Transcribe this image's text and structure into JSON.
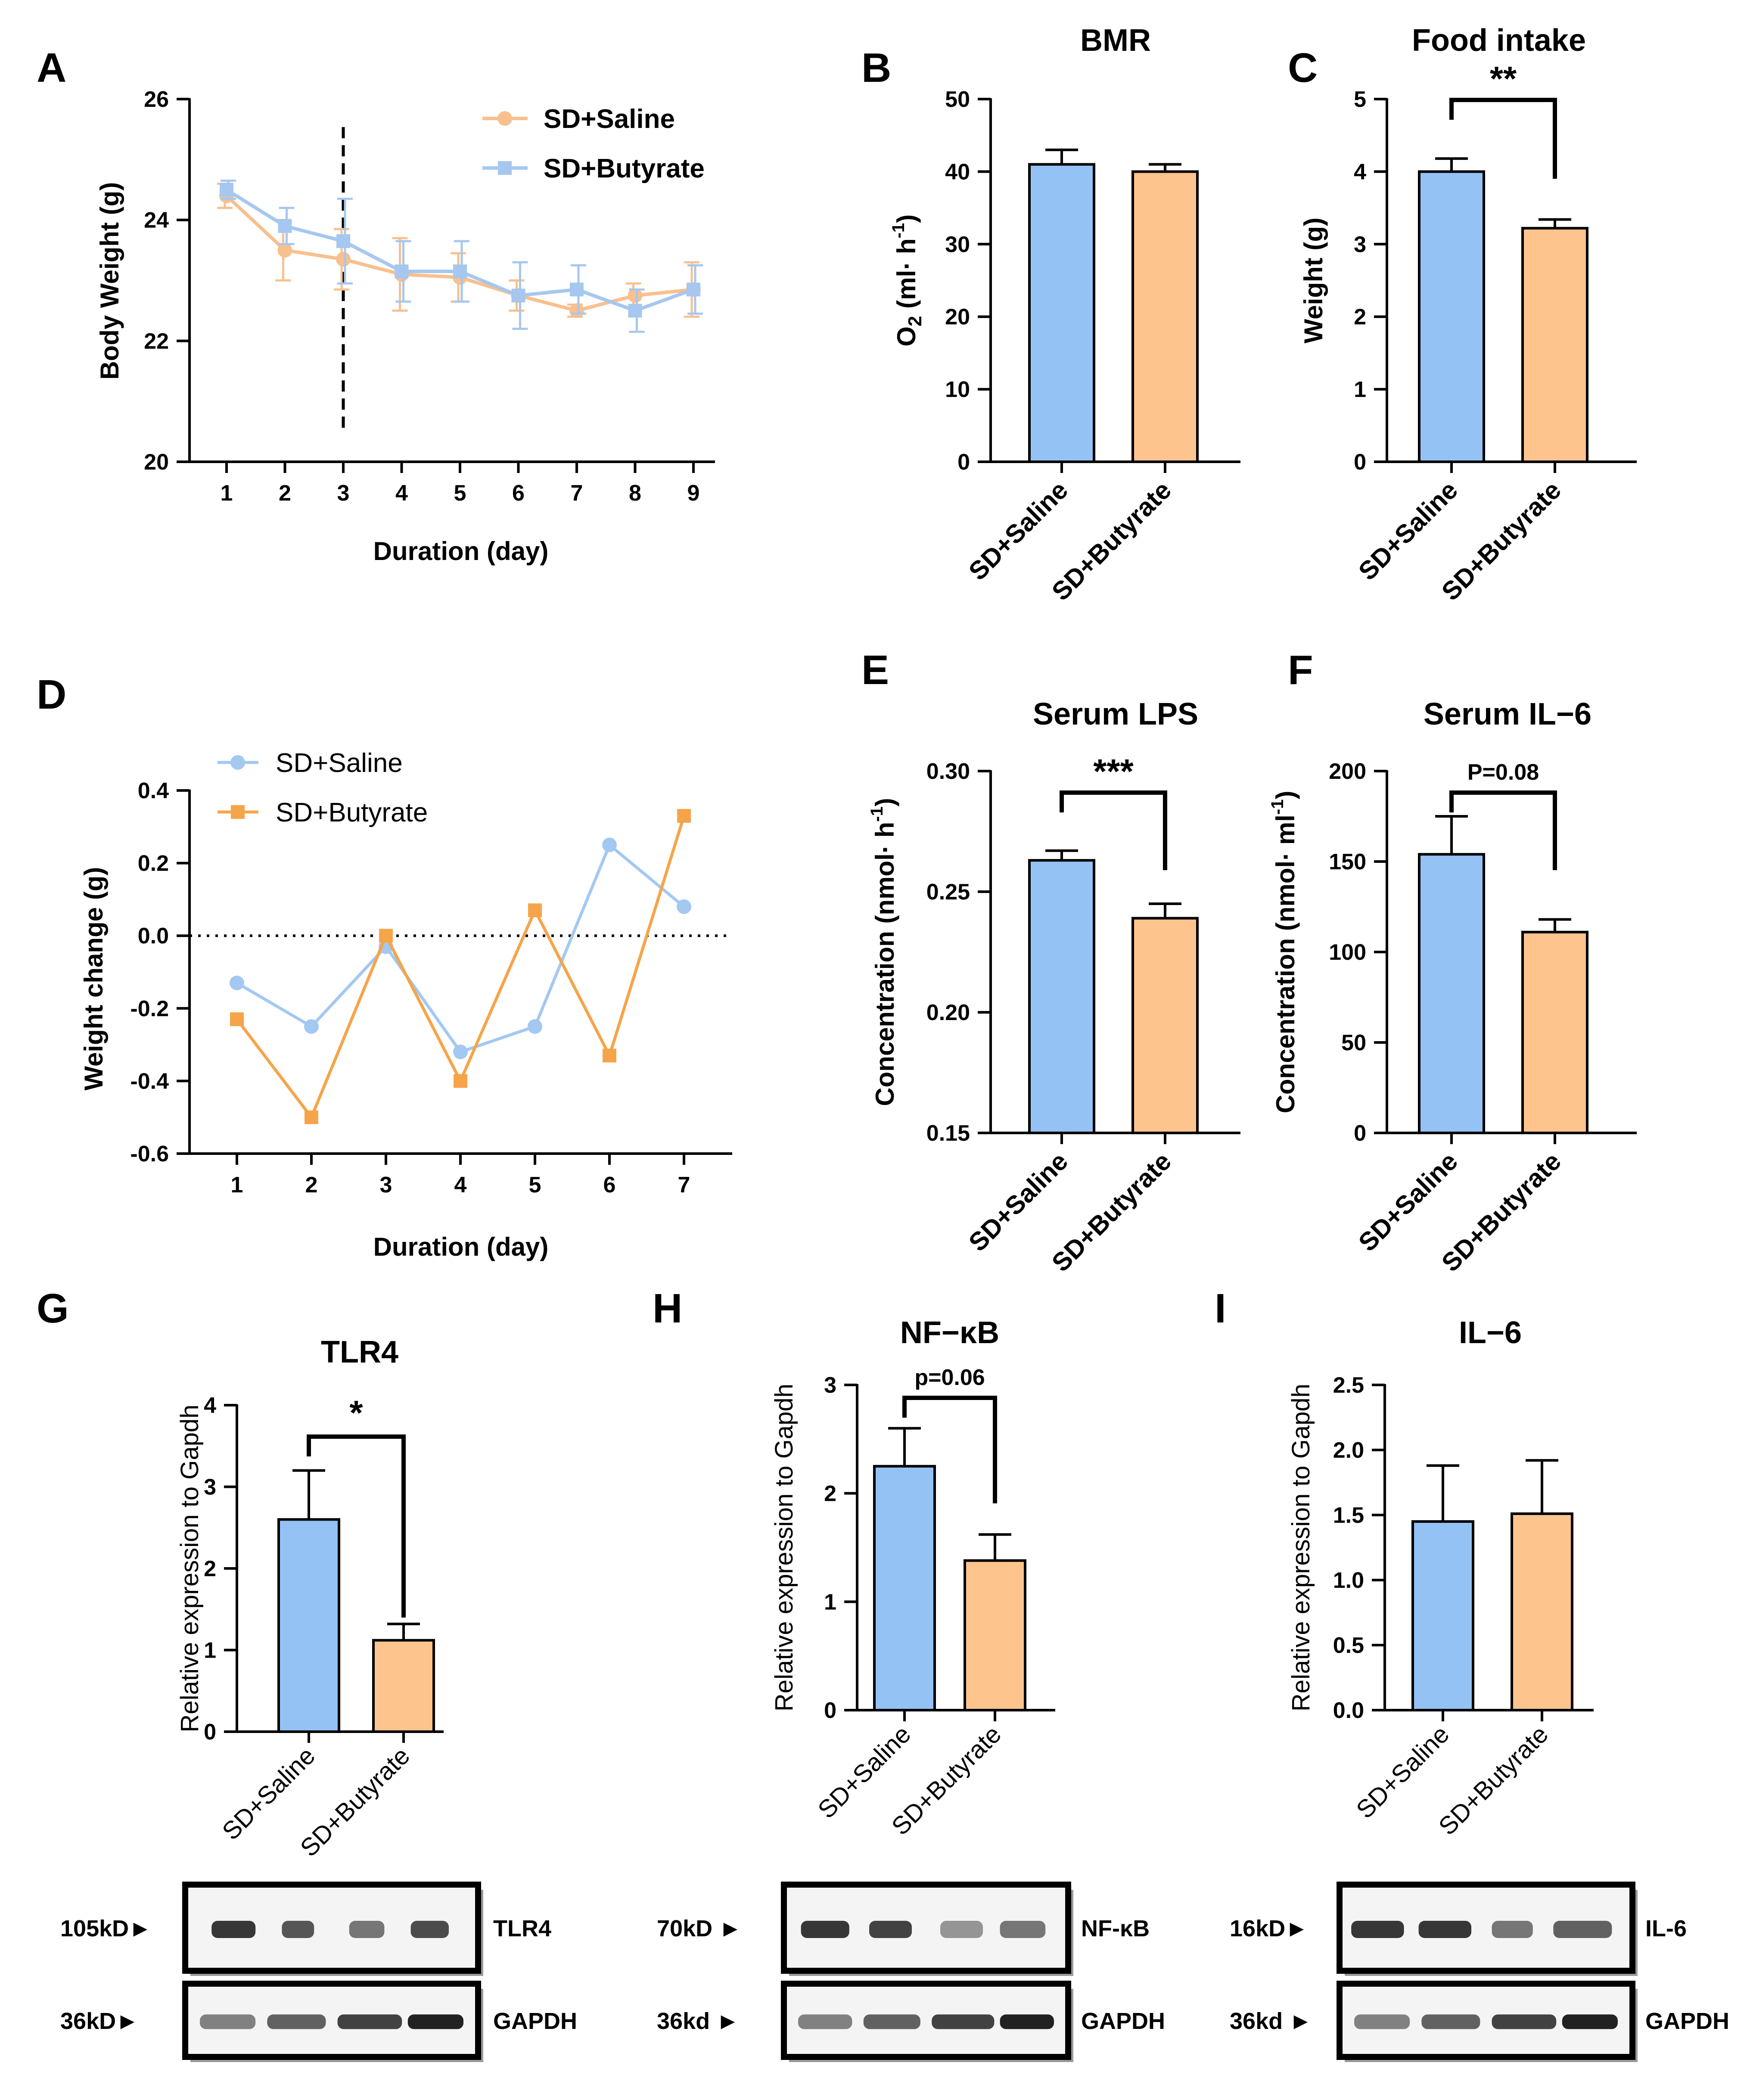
{
  "colors": {
    "saline_blue": "#94c2f5",
    "butyrate_orange": "#fdc48e",
    "lineA_saline": "#f8c08e",
    "lineA_butyrate": "#a6c7ef",
    "lineD_saline": "#a3c8f2",
    "lineD_butyrate": "#f6a449"
  },
  "chart_data": [
    {
      "id": "A",
      "type": "line",
      "panel_label": "A",
      "title": "",
      "xlabel": "Duration (day)",
      "ylabel": "Body Weight (g)",
      "x": [
        1,
        2,
        3,
        4,
        5,
        6,
        7,
        8,
        9
      ],
      "ylim": [
        20,
        26
      ],
      "yticks": [
        20,
        22,
        24,
        26
      ],
      "series": [
        {
          "name": "SD+Saline",
          "values": [
            24.4,
            23.5,
            23.35,
            23.1,
            23.05,
            22.75,
            22.5,
            22.75,
            22.85
          ],
          "errors": [
            0.2,
            0.5,
            0.5,
            0.6,
            0.4,
            0.25,
            0.1,
            0.2,
            0.45
          ]
        },
        {
          "name": "SD+Butyrate",
          "values": [
            24.5,
            23.9,
            23.65,
            23.15,
            23.15,
            22.75,
            22.85,
            22.5,
            22.85
          ],
          "errors": [
            0.15,
            0.3,
            0.7,
            0.5,
            0.5,
            0.55,
            0.4,
            0.35,
            0.4
          ]
        }
      ],
      "vline_x": 3
    },
    {
      "id": "B",
      "type": "bar",
      "panel_label": "B",
      "title": "BMR",
      "ylabel_main": "O",
      "ylabel_sub": "2",
      "ylabel_rest": " (ml· h",
      "ylabel_sup": "-1",
      "ylabel_end": ")",
      "categories": [
        "SD+Saline",
        "SD+Butyrate"
      ],
      "values": [
        41,
        40
      ],
      "errors": [
        2,
        1
      ],
      "ylim": [
        0,
        50
      ],
      "yticks": [
        "0",
        "10",
        "20",
        "30",
        "40",
        "50"
      ]
    },
    {
      "id": "C",
      "type": "bar",
      "panel_label": "C",
      "title": "Food intake",
      "ylabel": "Weight  (g)",
      "categories": [
        "SD+Saline",
        "SD+Butyrate"
      ],
      "values": [
        4.0,
        3.22
      ],
      "errors": [
        0.18,
        0.12
      ],
      "ylim": [
        0,
        5
      ],
      "yticks": [
        "0",
        "1",
        "2",
        "3",
        "4",
        "5"
      ],
      "significance": "**"
    },
    {
      "id": "D",
      "type": "line",
      "panel_label": "D",
      "xlabel": "Duration (day)",
      "ylabel": "Weight change (g)",
      "x": [
        1,
        2,
        3,
        4,
        5,
        6,
        7
      ],
      "ylim": [
        -0.6,
        0.4
      ],
      "yticks": [
        "-0.6",
        "-0.4",
        "-0.2",
        "0.0",
        "0.2",
        "0.4"
      ],
      "series": [
        {
          "name": "SD+Saline",
          "values": [
            -0.13,
            -0.25,
            -0.03,
            -0.32,
            -0.25,
            0.25,
            0.08
          ]
        },
        {
          "name": "SD+Butyrate",
          "values": [
            -0.23,
            -0.5,
            0.0,
            -0.4,
            0.07,
            -0.33,
            0.33
          ]
        }
      ],
      "hline_y": 0
    },
    {
      "id": "E",
      "type": "bar",
      "panel_label": "E",
      "title": "Serum LPS",
      "ylabel_main": "Concentration (nmol· h",
      "ylabel_sup": "-1",
      "ylabel_end": ")",
      "categories": [
        "SD+Saline",
        "SD+Butyrate"
      ],
      "values": [
        0.263,
        0.239
      ],
      "errors": [
        0.004,
        0.006
      ],
      "ylim": [
        0.15,
        0.3
      ],
      "yticks": [
        "0.15",
        "0.20",
        "0.25",
        "0.30"
      ],
      "significance": "***"
    },
    {
      "id": "F",
      "type": "bar",
      "panel_label": "F",
      "title": "Serum IL−6",
      "ylabel_main": "Concentration (nmol· ml",
      "ylabel_sup": "-1",
      "ylabel_end": ")",
      "categories": [
        "SD+Saline",
        "SD+Butyrate"
      ],
      "values": [
        154,
        111
      ],
      "errors": [
        21,
        7
      ],
      "ylim": [
        0,
        200
      ],
      "yticks": [
        "0",
        "50",
        "100",
        "150",
        "200"
      ],
      "significance": "P=0.08"
    },
    {
      "id": "G",
      "type": "bar",
      "panel_label": "G",
      "title": "TLR4",
      "ylabel": "Relative expression to Gapdh",
      "categories": [
        "SD+Saline",
        "SD+Butyrate"
      ],
      "values": [
        2.6,
        1.12
      ],
      "errors": [
        0.6,
        0.2
      ],
      "ylim": [
        0,
        4
      ],
      "yticks": [
        "0",
        "1",
        "2",
        "3",
        "4"
      ],
      "significance": "*"
    },
    {
      "id": "H",
      "type": "bar",
      "panel_label": "H",
      "title": "NF−κB",
      "ylabel": "Relative expression to Gapdh",
      "categories": [
        "SD+Saline",
        "SD+Butyrate"
      ],
      "values": [
        2.25,
        1.38
      ],
      "errors": [
        0.35,
        0.24
      ],
      "ylim": [
        0,
        3
      ],
      "yticks": [
        "0",
        "1",
        "2",
        "3"
      ],
      "significance": "p=0.06"
    },
    {
      "id": "I",
      "type": "bar",
      "panel_label": "I",
      "title": "IL−6",
      "ylabel": "Relative expression to Gapdh",
      "categories": [
        "SD+Saline",
        "SD+Butyrate"
      ],
      "values": [
        1.45,
        1.51
      ],
      "errors": [
        0.43,
        0.41
      ],
      "ylim": [
        0,
        2.5
      ],
      "yticks": [
        "0.0",
        "0.5",
        "1.0",
        "1.5",
        "2.0",
        "2.5"
      ]
    }
  ],
  "blots": [
    {
      "panel": "G",
      "top_marker": "105kD►",
      "top_label": "TLR4",
      "bottom_marker": "36kD►",
      "bottom_label": "GAPDH"
    },
    {
      "panel": "H",
      "top_marker": "70kD ►",
      "top_label": "NF-κB",
      "bottom_marker": "36kd ►",
      "bottom_label": "GAPDH"
    },
    {
      "panel": "I",
      "top_marker": "16kD►",
      "top_label": "IL-6",
      "bottom_marker": "36kd ►",
      "bottom_label": "GAPDH"
    }
  ]
}
